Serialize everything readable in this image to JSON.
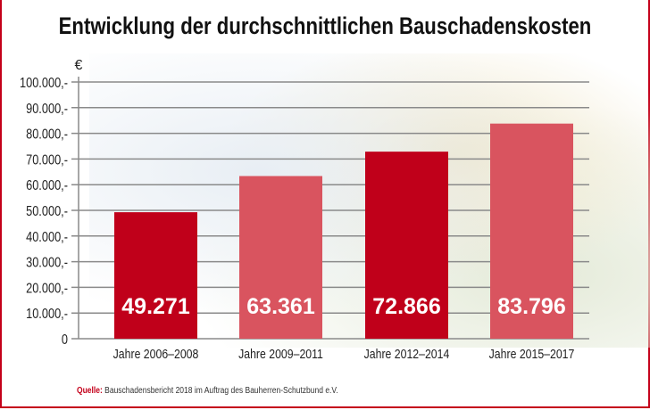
{
  "chart_data": {
    "type": "bar",
    "title": "Entwicklung der durchschnittlichen Bauschadenskosten",
    "ylabel": "€",
    "categories": [
      "Jahre 2006–2008",
      "Jahre 2009–2011",
      "Jahre 2012–2014",
      "Jahre 2015–2017"
    ],
    "values": [
      49271,
      63361,
      72866,
      83796
    ],
    "data_labels": [
      "49.271",
      "63.361",
      "72.866",
      "83.796"
    ],
    "ylim": [
      0,
      100000
    ],
    "yticks": [
      0,
      10000,
      20000,
      30000,
      40000,
      50000,
      60000,
      70000,
      80000,
      90000,
      100000
    ],
    "ytick_labels": [
      "0",
      "10.000,-",
      "20.000,-",
      "30.000,-",
      "40.000,-",
      "50.000,-",
      "60.000,-",
      "70.000,-",
      "80.000,-",
      "90.000,-",
      "100.000,-"
    ],
    "grid": true,
    "colors": [
      "#c0001a",
      "#d9545f",
      "#c0001a",
      "#d9545f"
    ]
  },
  "source": {
    "label": "Quelle:",
    "text": "Bauschadensbericht 2018 im Auftrag des Bauherren-Schutzbund e.V."
  }
}
